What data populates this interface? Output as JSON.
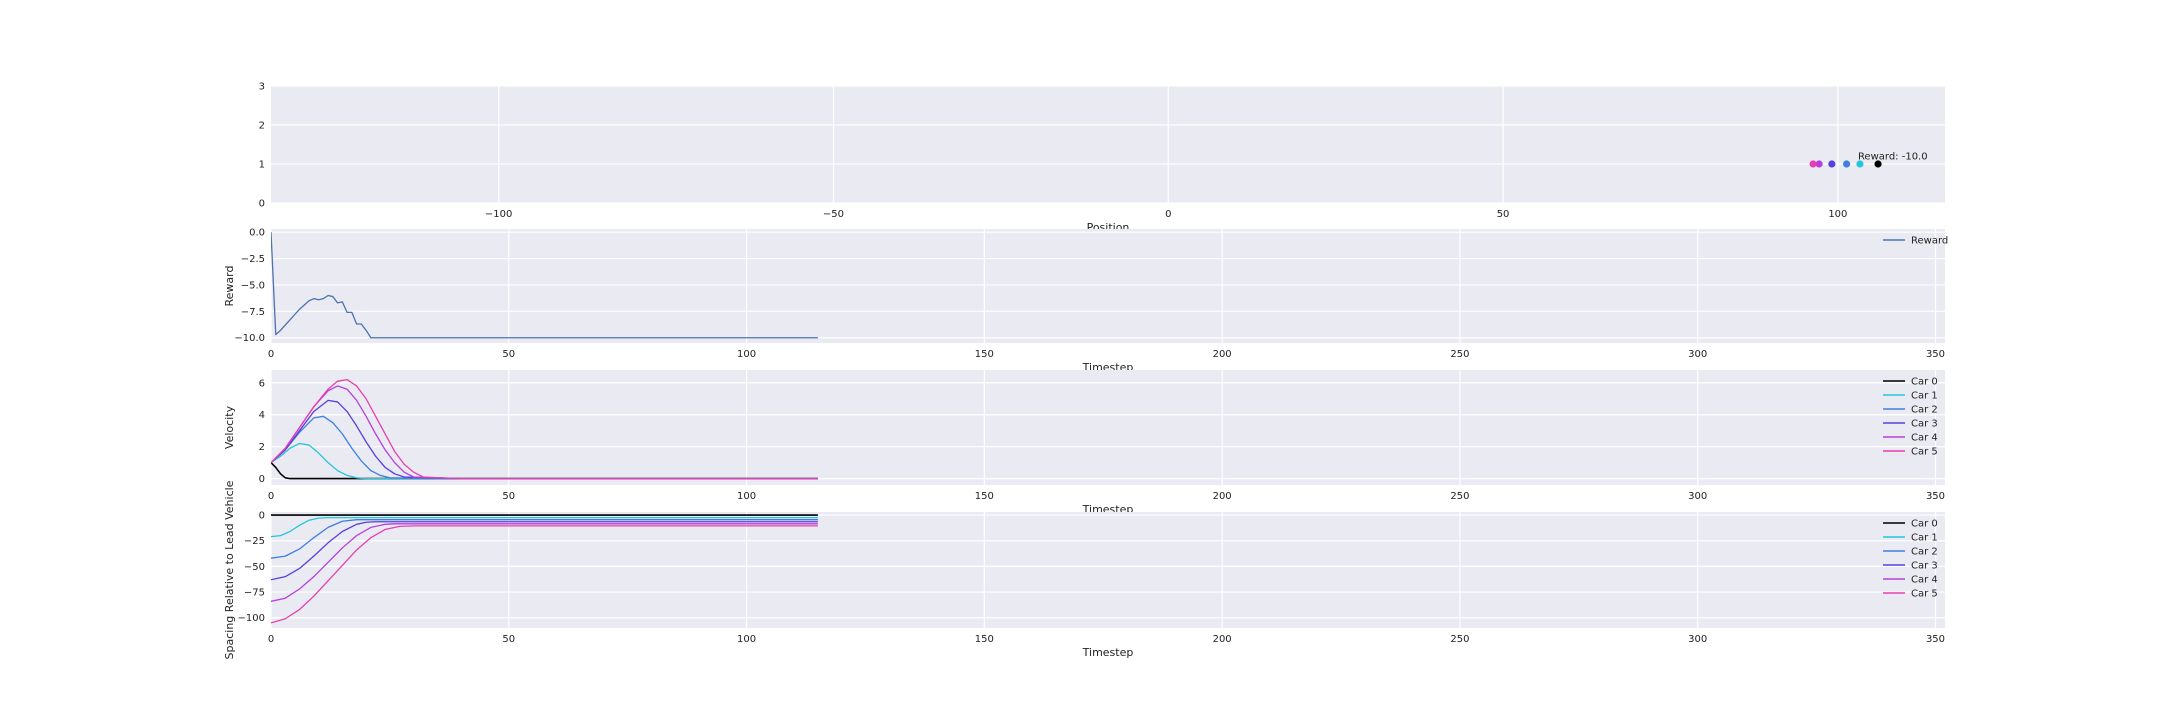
{
  "chart_data": [
    {
      "id": "positions",
      "type": "scatter",
      "xlabel": "Position",
      "ylabel": "",
      "xlim": [
        -134,
        116
      ],
      "ylim": [
        0,
        3
      ],
      "xticks": [
        -100,
        -50,
        0,
        50,
        100
      ],
      "yticks": [
        0,
        1,
        2,
        3
      ],
      "grid": true,
      "annotation": {
        "text": "Reward: -10.0",
        "x": 103,
        "y": 1.12
      },
      "points": [
        {
          "name": "Car 0",
          "x": 106,
          "y": 1,
          "color": "#000000"
        },
        {
          "name": "Car 1",
          "x": 103.3,
          "y": 1,
          "color": "#26c6da"
        },
        {
          "name": "Car 2",
          "x": 101.3,
          "y": 1,
          "color": "#3f7fe0"
        },
        {
          "name": "Car 3",
          "x": 99.1,
          "y": 1,
          "color": "#5a3fdc"
        },
        {
          "name": "Car 4",
          "x": 97.2,
          "y": 1,
          "color": "#b63fe0"
        },
        {
          "name": "Car 5",
          "x": 96.3,
          "y": 1,
          "color": "#e63fb0"
        }
      ]
    },
    {
      "id": "reward",
      "type": "line",
      "xlabel": "Timestep",
      "ylabel": "Reward",
      "xlim": [
        0,
        352
      ],
      "ylim": [
        -10.5,
        0.3
      ],
      "xticks": [
        0,
        50,
        100,
        150,
        200,
        250,
        300,
        350
      ],
      "yticks": [
        0.0,
        -2.5,
        -5.0,
        -7.5,
        -10.0
      ],
      "ytick_labels": [
        "0.0",
        "−2.5",
        "−5.0",
        "−7.5",
        "−10.0"
      ],
      "grid": true,
      "legend": "top-right",
      "series": [
        {
          "name": "Reward",
          "color": "#4c72b0",
          "x": [
            0,
            1,
            2,
            3,
            4,
            5,
            6,
            7,
            8,
            9,
            10,
            11,
            12,
            13,
            14,
            15,
            16,
            17,
            18,
            19,
            20,
            21,
            22,
            25,
            40,
            60,
            80,
            100,
            115
          ],
          "y": [
            0,
            -9.7,
            -9.3,
            -8.8,
            -8.3,
            -7.8,
            -7.3,
            -6.9,
            -6.5,
            -6.3,
            -6.4,
            -6.3,
            -6.0,
            -6.1,
            -6.7,
            -6.6,
            -7.6,
            -7.6,
            -8.7,
            -8.7,
            -9.3,
            -10.0,
            -10.0,
            -10.0,
            -10.0,
            -10.0,
            -10.0,
            -10.0,
            -10.0
          ]
        }
      ]
    },
    {
      "id": "velocity",
      "type": "line",
      "xlabel": "Timestep",
      "ylabel": "Velocity",
      "xlim": [
        0,
        352
      ],
      "ylim": [
        -0.4,
        6.8
      ],
      "xticks": [
        0,
        50,
        100,
        150,
        200,
        250,
        300,
        350
      ],
      "yticks": [
        0,
        2,
        4,
        6
      ],
      "grid": true,
      "legend": "top-right",
      "series": [
        {
          "name": "Car 0",
          "color": "#000000",
          "x": [
            0,
            1,
            2,
            3,
            4,
            115
          ],
          "y": [
            1.0,
            0.7,
            0.3,
            0.05,
            0.0,
            0.0
          ]
        },
        {
          "name": "Car 1",
          "color": "#26c6da",
          "x": [
            0,
            2,
            4,
            6,
            8,
            10,
            12,
            14,
            16,
            18,
            20,
            30,
            115
          ],
          "y": [
            1.0,
            1.4,
            1.9,
            2.2,
            2.1,
            1.6,
            1.0,
            0.5,
            0.2,
            0.05,
            0.0,
            0.0,
            0.0
          ]
        },
        {
          "name": "Car 2",
          "color": "#3f7fe0",
          "x": [
            0,
            3,
            6,
            9,
            11,
            13,
            15,
            17,
            19,
            21,
            23,
            25,
            35,
            115
          ],
          "y": [
            1.0,
            1.8,
            2.9,
            3.8,
            3.9,
            3.5,
            2.8,
            1.9,
            1.1,
            0.5,
            0.2,
            0.05,
            0.0,
            0.0
          ]
        },
        {
          "name": "Car 3",
          "color": "#5a3fdc",
          "x": [
            0,
            3,
            6,
            9,
            12,
            14,
            16,
            18,
            20,
            22,
            24,
            26,
            28,
            40,
            115
          ],
          "y": [
            1.0,
            1.8,
            3.0,
            4.2,
            4.9,
            4.8,
            4.2,
            3.3,
            2.3,
            1.4,
            0.7,
            0.3,
            0.1,
            0.0,
            0.0
          ]
        },
        {
          "name": "Car 4",
          "color": "#b63fe0",
          "x": [
            0,
            3,
            6,
            9,
            12,
            14,
            16,
            18,
            20,
            22,
            24,
            26,
            28,
            30,
            40,
            115
          ],
          "y": [
            1.0,
            1.9,
            3.2,
            4.5,
            5.5,
            5.8,
            5.6,
            4.9,
            3.9,
            2.8,
            1.8,
            1.0,
            0.4,
            0.1,
            0.0,
            0.0
          ]
        },
        {
          "name": "Car 5",
          "color": "#e63fb0",
          "x": [
            0,
            3,
            6,
            9,
            12,
            14,
            16,
            18,
            20,
            22,
            24,
            26,
            28,
            30,
            32,
            40,
            115
          ],
          "y": [
            1.0,
            1.9,
            3.2,
            4.5,
            5.6,
            6.1,
            6.2,
            5.8,
            5.0,
            3.9,
            2.8,
            1.7,
            0.9,
            0.4,
            0.1,
            0.0,
            0.0
          ]
        }
      ]
    },
    {
      "id": "spacing",
      "type": "line",
      "xlabel": "Timestep",
      "ylabel": "Spacing Relative to Lead Vehicle",
      "xlim": [
        0,
        352
      ],
      "ylim": [
        -110,
        3
      ],
      "xticks": [
        0,
        50,
        100,
        150,
        200,
        250,
        300,
        350
      ],
      "yticks": [
        0,
        -25,
        -50,
        -75,
        -100
      ],
      "ytick_labels": [
        "0",
        "−25",
        "−50",
        "−75",
        "−100"
      ],
      "grid": true,
      "legend": "top-right",
      "series": [
        {
          "name": "Car 0",
          "color": "#000000",
          "x": [
            0,
            115
          ],
          "y": [
            0,
            0
          ]
        },
        {
          "name": "Car 1",
          "color": "#26c6da",
          "x": [
            0,
            2,
            4,
            6,
            8,
            10,
            12,
            115
          ],
          "y": [
            -21,
            -20,
            -16,
            -10,
            -5,
            -3,
            -2.5,
            -2.5
          ]
        },
        {
          "name": "Car 2",
          "color": "#3f7fe0",
          "x": [
            0,
            3,
            6,
            9,
            12,
            15,
            18,
            115
          ],
          "y": [
            -42,
            -40,
            -33,
            -22,
            -12,
            -6,
            -4.5,
            -4.5
          ]
        },
        {
          "name": "Car 3",
          "color": "#5a3fdc",
          "x": [
            0,
            3,
            6,
            9,
            12,
            15,
            18,
            20,
            22,
            115
          ],
          "y": [
            -63,
            -60,
            -52,
            -40,
            -27,
            -16,
            -9,
            -7,
            -6.5,
            -6.5
          ]
        },
        {
          "name": "Car 4",
          "color": "#b63fe0",
          "x": [
            0,
            3,
            6,
            9,
            12,
            15,
            18,
            21,
            24,
            26,
            115
          ],
          "y": [
            -84,
            -81,
            -72,
            -60,
            -46,
            -32,
            -20,
            -12,
            -9,
            -8.5,
            -8.5
          ]
        },
        {
          "name": "Car 5",
          "color": "#e63fb0",
          "x": [
            0,
            3,
            6,
            9,
            12,
            15,
            18,
            21,
            24,
            27,
            30,
            115
          ],
          "y": [
            -105,
            -101,
            -92,
            -79,
            -64,
            -49,
            -34,
            -22,
            -14,
            -11,
            -10.5,
            -10.5
          ]
        }
      ]
    }
  ]
}
